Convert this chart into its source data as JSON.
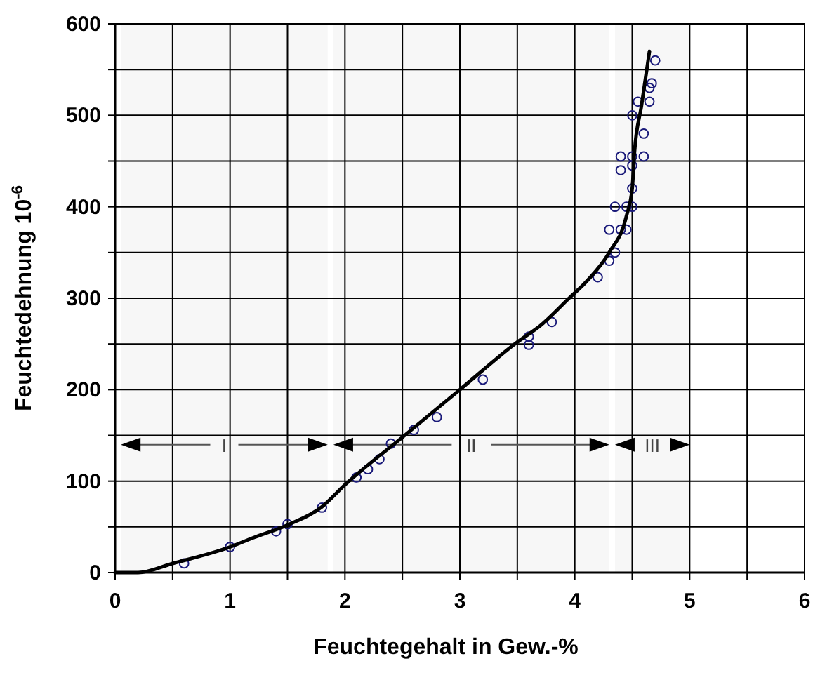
{
  "chart_data": {
    "type": "scatter",
    "xlabel": "Feuchtegehalt in Gew.-%",
    "ylabel": "Feuchtedehnung 10$^{-6}$",
    "xlim": [
      0,
      6
    ],
    "ylim": [
      0,
      600
    ],
    "xticks": [
      0,
      {
        "value": 0.5,
        "label": null
      },
      1,
      {
        "value": 1.5,
        "label": null
      },
      2,
      {
        "value": 2.5,
        "label": null
      },
      3,
      {
        "value": 3.5,
        "label": null
      },
      4,
      {
        "value": 4.5,
        "label": null
      },
      5,
      {
        "value": 5.5,
        "label": null
      },
      6
    ],
    "yticks": [
      0,
      {
        "value": 50,
        "label": null
      },
      100,
      {
        "value": 150,
        "label": null
      },
      200,
      {
        "value": 250,
        "label": null
      },
      300,
      {
        "value": 350,
        "label": null
      },
      400,
      {
        "value": 450,
        "label": null
      },
      500,
      {
        "value": 550,
        "label": null
      },
      600
    ],
    "grid": true,
    "series": [
      {
        "color": "#1a1a7a",
        "marker": "circle",
        "x": [
          0.6,
          1.0,
          1.4,
          1.5,
          1.8,
          2.1,
          2.2,
          2.3,
          2.4,
          2.6,
          2.8,
          3.2,
          3.6,
          3.6,
          3.8,
          4.2,
          4.3,
          4.35,
          4.3,
          4.45,
          4.4,
          4.35,
          4.45,
          4.5,
          4.5,
          4.4,
          4.5,
          4.4,
          4.5,
          4.6,
          4.6,
          4.5,
          4.55,
          4.65,
          4.65,
          4.67,
          4.7
        ],
        "values": [
          10,
          28,
          45,
          53,
          71,
          104,
          113,
          124,
          141,
          156,
          170,
          211,
          258,
          249,
          274,
          323,
          341,
          350,
          375,
          375,
          375,
          400,
          400,
          400,
          420,
          440,
          445,
          455,
          455,
          455,
          480,
          500,
          515,
          515,
          530,
          535,
          560
        ]
      },
      {
        "type": "line",
        "color": "#000000",
        "line_style": "solid",
        "x": [
          0,
          0.2,
          0.5,
          1,
          1.2,
          1.5,
          1.8,
          2,
          2.5,
          3,
          3.5,
          3.7,
          3.95,
          4.1,
          4.3,
          4.45,
          4.5,
          4.52,
          4.58,
          4.65
        ],
        "values": [
          0,
          0,
          10,
          28,
          38,
          52,
          72,
          96,
          148,
          200,
          252,
          270,
          300,
          318,
          350,
          390,
          420,
          460,
          510,
          570
        ]
      }
    ],
    "bands": [
      {
        "axis": "x",
        "from": 0.05,
        "to": 1.85,
        "label": "I",
        "color": "#000000"
      },
      {
        "axis": "x",
        "from": 1.9,
        "to": 4.3,
        "label": "II",
        "color": "#000000"
      },
      {
        "axis": "x",
        "from": 4.35,
        "to": 5.0,
        "label": "III",
        "color": "#000000"
      }
    ]
  }
}
